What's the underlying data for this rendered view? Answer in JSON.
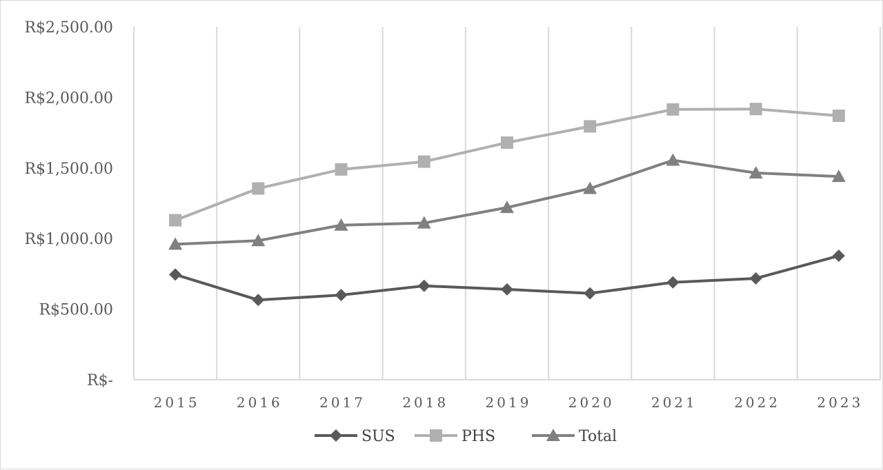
{
  "chart_data": {
    "type": "line",
    "title": "",
    "xlabel": "",
    "ylabel": "",
    "ylim": [
      0,
      2500
    ],
    "y_ticks": [
      {
        "value": 0,
        "label": "R$-"
      },
      {
        "value": 500,
        "label": "R$500.00"
      },
      {
        "value": 1000,
        "label": "R$1,000.00"
      },
      {
        "value": 1500,
        "label": "R$1,500.00"
      },
      {
        "value": 2000,
        "label": "R$2,000.00"
      },
      {
        "value": 2500,
        "label": "R$2,500.00"
      }
    ],
    "categories": [
      "2015",
      "2016",
      "2017",
      "2018",
      "2019",
      "2020",
      "2021",
      "2022",
      "2023"
    ],
    "grid": {
      "vertical": true,
      "horizontal": false
    },
    "legend_position": "bottom",
    "series": [
      {
        "name": "SUS",
        "marker": "diamond",
        "color": "#595959",
        "values": [
          745,
          565,
          600,
          665,
          640,
          612,
          690,
          718,
          878
        ]
      },
      {
        "name": "PHS",
        "marker": "square",
        "color": "#b0b0b0",
        "values": [
          1130,
          1355,
          1490,
          1545,
          1680,
          1795,
          1915,
          1918,
          1870
        ]
      },
      {
        "name": "Total",
        "marker": "triangle",
        "color": "#808080",
        "values": [
          960,
          985,
          1095,
          1110,
          1220,
          1355,
          1555,
          1465,
          1440
        ]
      }
    ]
  }
}
